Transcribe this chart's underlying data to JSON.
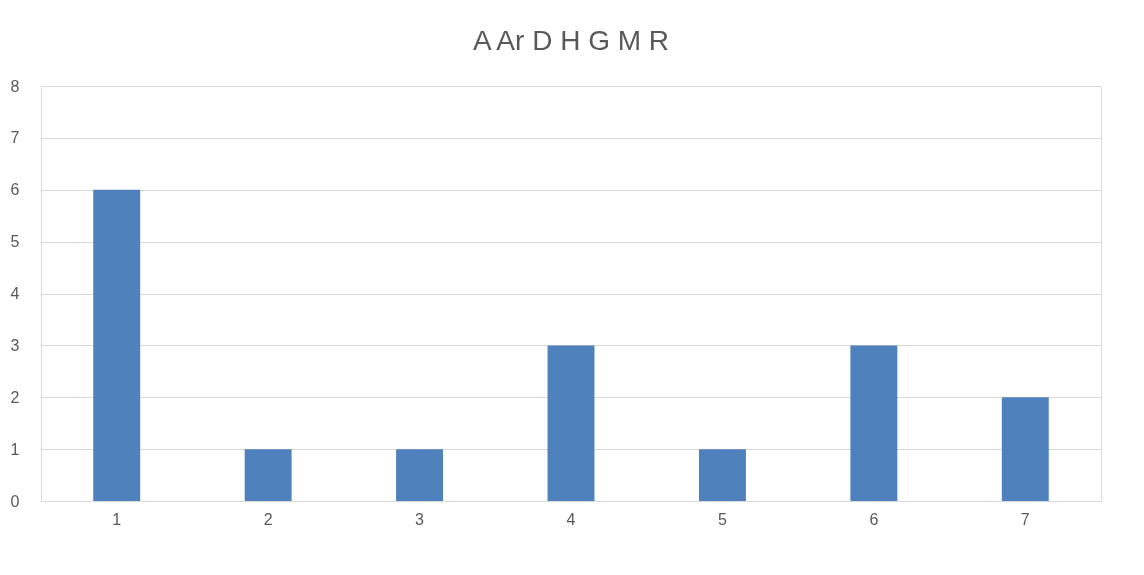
{
  "chart_data": {
    "type": "bar",
    "title": "A Ar D H G M R",
    "categories": [
      "1",
      "2",
      "3",
      "4",
      "5",
      "6",
      "7"
    ],
    "values": [
      6,
      1,
      1,
      3,
      1,
      3,
      2
    ],
    "color": "#4f81bd",
    "ylim": [
      0,
      8
    ],
    "yticks": [
      0,
      1,
      2,
      3,
      4,
      5,
      6,
      7,
      8
    ],
    "grid": "y"
  }
}
